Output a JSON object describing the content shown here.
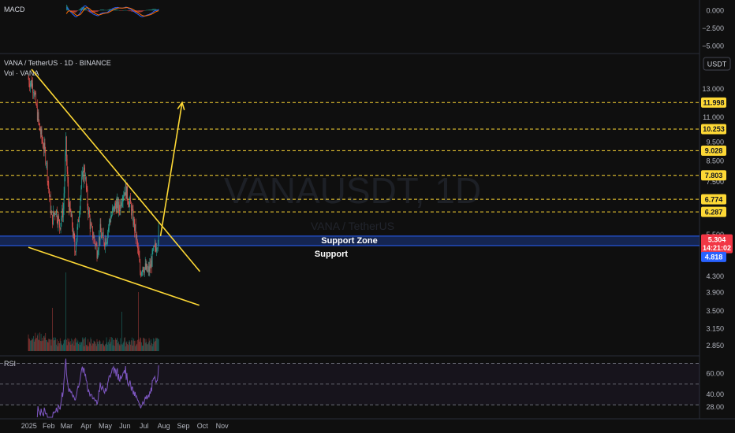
{
  "chart_data": {
    "type": "candlestick",
    "symbol_title": "VANA / TetherUS · 1D · BINANCE",
    "volume_label": "Vol · VANA",
    "currency_button": "USDT",
    "watermark": {
      "symbol": "VANAUSDT, 1D",
      "name": "VANA / TetherUS"
    },
    "x_axis": {
      "ticks": [
        "2025",
        "Feb",
        "Mar",
        "Apr",
        "May",
        "Jun",
        "Jul",
        "Aug",
        "Sep",
        "Oct",
        "Nov"
      ]
    },
    "y_axis": {
      "scale": "log",
      "ticks": [
        "13.000",
        "11.000",
        "9.500",
        "8.500",
        "7.500",
        "5.500",
        "4.300",
        "3.900",
        "3.500",
        "3.150",
        "2.850"
      ]
    },
    "level_lines": [
      {
        "value": 11.998,
        "label": "11.998",
        "color": "#fdd835"
      },
      {
        "value": 10.253,
        "label": "10.253",
        "color": "#fdd835"
      },
      {
        "value": 9.028,
        "label": "9.028",
        "color": "#fdd835"
      },
      {
        "value": 7.803,
        "label": "7.803",
        "color": "#fdd835"
      },
      {
        "value": 6.774,
        "label": "6.774",
        "color": "#fdd835"
      },
      {
        "value": 6.287,
        "label": "6.287",
        "color": "#fdd835"
      }
    ],
    "current_price": {
      "value": 5.304,
      "label": "5.304",
      "countdown": "14:21:02",
      "color": "#f23645"
    },
    "support_price": {
      "value": 4.818,
      "label": "4.818",
      "color": "#2962ff"
    },
    "support_zone": {
      "low": 5.15,
      "high": 5.45,
      "color": "#2962ff"
    },
    "annotations": {
      "zone": "Support Zone",
      "support": "Support"
    },
    "trendlines": {
      "upper": {
        "from": [
          "2025-01-05",
          14.6
        ],
        "to": [
          "2025-09-27",
          4.42
        ],
        "color": "#fdd835"
      },
      "lower": {
        "from": [
          "2024-12-31",
          5.1
        ],
        "to": [
          "2025-09-26",
          3.62
        ],
        "color": "#fdd835"
      },
      "target_arrow": {
        "from": [
          "2025-07-27",
          5.45
        ],
        "to": [
          "2025-08-30",
          12.0
        ],
        "color": "#fdd835"
      }
    },
    "price_path": [
      [
        "2024-12-31",
        13.8
      ],
      [
        "2025-01-08",
        13.2
      ],
      [
        "2025-01-13",
        11.5
      ],
      [
        "2025-01-18",
        10.2
      ],
      [
        "2025-01-23",
        9.4
      ],
      [
        "2025-01-28",
        8.6
      ],
      [
        "2025-02-02",
        6.9
      ],
      [
        "2025-02-06",
        6.0
      ],
      [
        "2025-02-12",
        6.4
      ],
      [
        "2025-02-18",
        5.8
      ],
      [
        "2025-02-24",
        6.4
      ],
      [
        "2025-02-28",
        9.4
      ],
      [
        "2025-03-04",
        6.7
      ],
      [
        "2025-03-10",
        5.8
      ],
      [
        "2025-03-14",
        5.0
      ],
      [
        "2025-03-19",
        5.8
      ],
      [
        "2025-03-24",
        7.3
      ],
      [
        "2025-03-29",
        8.2
      ],
      [
        "2025-04-03",
        6.6
      ],
      [
        "2025-04-08",
        5.7
      ],
      [
        "2025-04-13",
        5.4
      ],
      [
        "2025-04-18",
        5.0
      ],
      [
        "2025-04-23",
        5.6
      ],
      [
        "2025-04-28",
        5.3
      ],
      [
        "2025-05-03",
        5.4
      ],
      [
        "2025-05-08",
        6.0
      ],
      [
        "2025-05-13",
        6.3
      ],
      [
        "2025-05-18",
        6.6
      ],
      [
        "2025-05-23",
        6.4
      ],
      [
        "2025-05-28",
        7.0
      ],
      [
        "2025-06-02",
        7.2
      ],
      [
        "2025-06-06",
        6.8
      ],
      [
        "2025-06-10",
        6.5
      ],
      [
        "2025-06-14",
        6.0
      ],
      [
        "2025-06-18",
        5.5
      ],
      [
        "2025-06-22",
        4.9
      ],
      [
        "2025-06-25",
        4.4
      ],
      [
        "2025-06-29",
        4.6
      ],
      [
        "2025-07-03",
        4.5
      ],
      [
        "2025-07-07",
        4.4
      ],
      [
        "2025-07-11",
        4.55
      ],
      [
        "2025-07-15",
        4.9
      ],
      [
        "2025-07-19",
        5.1
      ],
      [
        "2025-07-22",
        5.3
      ],
      [
        "2025-07-24",
        5.6
      ]
    ],
    "volume_spikes": [
      [
        "2025-02-28",
        1.0
      ],
      [
        "2025-06-22",
        0.75
      ],
      [
        "2025-02-07",
        0.55
      ],
      [
        "2025-05-27",
        0.5
      ]
    ],
    "macd": {
      "title": "MACD",
      "ticks": [
        "0.000",
        "−2.500",
        "−5.000"
      ],
      "ylim": [
        -5.6,
        0.8
      ]
    },
    "rsi": {
      "title": "RSI",
      "ticks": [
        "60.00",
        "40.00",
        "28.00"
      ],
      "upper_band": 70,
      "lower_band": 30,
      "mid": 50,
      "ylim": [
        18,
        75
      ]
    }
  }
}
